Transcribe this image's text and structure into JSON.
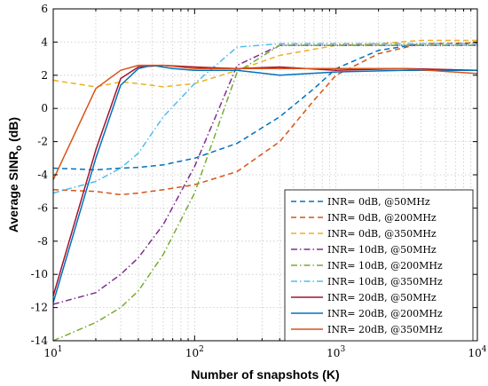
{
  "chart_data": {
    "type": "line",
    "xlabel": "Number of snapshots (K)",
    "ylabel_main": "Average  SINR",
    "ylabel_sub": "o",
    "ylabel_unit": "(dB)",
    "xscale": "log",
    "xlim": [
      10,
      10000
    ],
    "ylim": [
      -14,
      6
    ],
    "x_ticks": [
      {
        "value": 10,
        "base": "10",
        "exp": "1"
      },
      {
        "value": 100,
        "base": "10",
        "exp": "2"
      },
      {
        "value": 1000,
        "base": "10",
        "exp": "3"
      },
      {
        "value": 10000,
        "base": "10",
        "exp": "4"
      }
    ],
    "y_ticks": [
      -14,
      -12,
      -10,
      -8,
      -6,
      -4,
      -2,
      0,
      2,
      4,
      6
    ],
    "grid": true,
    "legend_position": "bottom-right",
    "series": [
      {
        "name": "INR= 0dB, @50MHz",
        "color": "#0072BD",
        "dash": "dashed",
        "x": [
          10,
          20,
          30,
          40,
          60,
          100,
          200,
          400,
          700,
          1000,
          2000,
          4000,
          10000
        ],
        "y": [
          -3.6,
          -3.7,
          -3.6,
          -3.55,
          -3.4,
          -3.0,
          -2.1,
          -0.5,
          1.2,
          2.4,
          3.5,
          3.9,
          3.9
        ]
      },
      {
        "name": "INR= 0dB, @200MHz",
        "color": "#D95319",
        "dash": "dashed",
        "x": [
          10,
          20,
          30,
          40,
          60,
          100,
          200,
          400,
          700,
          1000,
          2000,
          4000,
          10000
        ],
        "y": [
          -4.9,
          -5.0,
          -5.2,
          -5.1,
          -4.9,
          -4.6,
          -3.8,
          -2.0,
          0.5,
          2.0,
          3.3,
          3.9,
          3.95
        ]
      },
      {
        "name": "INR= 0dB, @350MHz",
        "color": "#EDB120",
        "dash": "dashed",
        "x": [
          10,
          20,
          30,
          40,
          60,
          100,
          200,
          400,
          1000,
          2000,
          4000,
          10000
        ],
        "y": [
          1.7,
          1.3,
          1.6,
          1.5,
          1.3,
          1.5,
          2.3,
          3.2,
          3.8,
          3.9,
          4.1,
          4.1
        ]
      },
      {
        "name": "INR= 10dB, @50MHz",
        "color": "#7E2F8E",
        "dash": "dashdot",
        "x": [
          10,
          20,
          30,
          40,
          60,
          100,
          200,
          400,
          1000,
          10000
        ],
        "y": [
          -11.8,
          -11.1,
          -10.0,
          -9.0,
          -7.0,
          -3.5,
          2.6,
          3.8,
          3.8,
          3.8
        ]
      },
      {
        "name": "INR= 10dB, @200MHz",
        "color": "#77AC30",
        "dash": "dashdot",
        "x": [
          10,
          20,
          30,
          40,
          60,
          100,
          200,
          400,
          1000,
          10000
        ],
        "y": [
          -14.0,
          -12.9,
          -12.0,
          -11.0,
          -8.8,
          -5.1,
          2.2,
          3.8,
          3.8,
          3.8
        ]
      },
      {
        "name": "INR= 10dB, @350MHz",
        "color": "#4DBEEE",
        "dash": "dashdot",
        "x": [
          10,
          20,
          30,
          40,
          60,
          100,
          200,
          400,
          1000,
          10000
        ],
        "y": [
          -5.1,
          -4.4,
          -3.6,
          -2.7,
          -0.5,
          1.5,
          3.7,
          3.9,
          3.9,
          3.9
        ]
      },
      {
        "name": "INR= 20dB, @50MHz",
        "color": "#A2142F",
        "dash": "solid",
        "x": [
          10,
          20,
          30,
          40,
          60,
          100,
          200,
          400,
          1000,
          3000,
          10000
        ],
        "y": [
          -11.3,
          -2.5,
          1.8,
          2.5,
          2.6,
          2.5,
          2.4,
          2.5,
          2.3,
          2.4,
          2.3
        ]
      },
      {
        "name": "INR= 20dB, @200MHz",
        "color": "#0072BD",
        "dash": "solid",
        "x": [
          10,
          20,
          30,
          40,
          50,
          70,
          100,
          200,
          400,
          1000,
          3000,
          10000
        ],
        "y": [
          -11.7,
          -3.0,
          1.4,
          2.4,
          2.6,
          2.4,
          2.3,
          2.3,
          2.0,
          2.2,
          2.3,
          2.3
        ]
      },
      {
        "name": "INR= 20dB, @350MHz",
        "color": "#D95319",
        "dash": "solid",
        "x": [
          10,
          20,
          30,
          40,
          60,
          100,
          200,
          400,
          1000,
          3000,
          10000
        ],
        "y": [
          -4.3,
          1.2,
          2.3,
          2.6,
          2.6,
          2.4,
          2.4,
          2.4,
          2.4,
          2.4,
          2.1
        ]
      }
    ]
  }
}
